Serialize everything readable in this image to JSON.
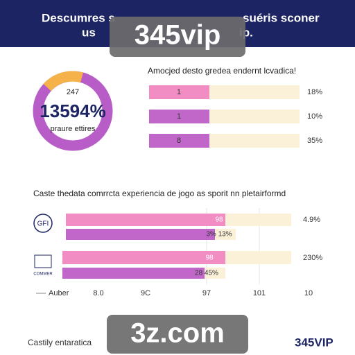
{
  "header": {
    "line1": "Descumres s",
    "line1_end": "suéris sconer",
    "line2": "us",
    "line2_end": "ip."
  },
  "watermark_top": "345vip",
  "donut": {
    "top": "247",
    "big": "13594%",
    "caption": "praure ettires"
  },
  "top_panel": {
    "title": "Amocjed desto gredea endernt lcvadica!",
    "rows": [
      {
        "label": "1",
        "percent": "18%"
      },
      {
        "label": "1",
        "percent": "10%"
      },
      {
        "label": "8",
        "percent": "35%"
      }
    ]
  },
  "section": {
    "title": "Caste thedata comrrcta experiencia de jogo as sporit nn pletairformd",
    "groups": [
      {
        "logo": "GFI",
        "bar1": "98",
        "bar2": "3% 13%",
        "percent": "4.9%"
      },
      {
        "logo": "COMMER",
        "bar1": "98",
        "bar2": "28 45%",
        "percent": "230%"
      }
    ],
    "legend": "Auber",
    "axis": [
      "8.0",
      "9C",
      "97",
      "101",
      "10"
    ]
  },
  "footer": {
    "text": "Castily entaratica",
    "brand": "345VIP"
  },
  "watermark_bottom": "3z.com"
}
